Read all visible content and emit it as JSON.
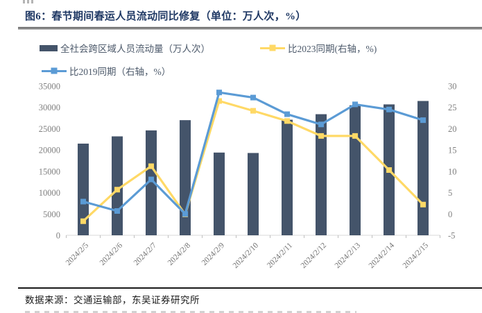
{
  "page": {
    "title": "图6：春节期间春运人员流动同比修复（单位：万人次，%）",
    "source_note": "数据来源：交通运输部，东吴证券研究所"
  },
  "colors": {
    "title_navy": "#1f3864",
    "bar": "#44546a",
    "line_2023_yellow": "#ffd966",
    "line_2019_blue": "#5b9bd5",
    "axis_text": "#7f7f7f",
    "axis_line": "#d9d9d9",
    "divider": "#1a1a1a"
  },
  "legend": [
    {
      "label": "全社会跨区域人员流动量（万人次）",
      "swatch": "bar-swatch",
      "color": "#44546a"
    },
    {
      "label": "比2023同期(右轴，%)",
      "swatch": "line-swatch",
      "color": "#ffd966"
    },
    {
      "label": "比2019同期（右轴，%）",
      "swatch": "line-swatch",
      "color": "#5b9bd5"
    }
  ],
  "chart_data": {
    "type": "bar",
    "subtype": "bar+line combo, lines on secondary axis",
    "title": "图6：春节期间春运人员流动同比修复（单位：万人次，%）",
    "categories": [
      "2024/2/5",
      "2024/2/6",
      "2024/2/7",
      "2024/2/8",
      "2024/2/9",
      "2024/2/10",
      "2024/2/11",
      "2024/2/12",
      "2024/2/13",
      "2024/2/14",
      "2024/2/15"
    ],
    "series": [
      {
        "name": "全社会跨区域人员流动量（万人次）",
        "type": "bar",
        "axis": "left",
        "color": "#44546a",
        "values": [
          21500,
          23200,
          24600,
          27000,
          19400,
          19300,
          27100,
          28400,
          30500,
          30700,
          31500
        ]
      },
      {
        "name": "比2023同期(右轴，%)",
        "type": "line",
        "axis": "right",
        "color": "#ffd966",
        "values": [
          -1.7,
          5.7,
          11.2,
          -0.1,
          26.5,
          24.2,
          21.8,
          18.3,
          18.3,
          10.3,
          2.2
        ]
      },
      {
        "name": "比2019同期（右轴，%）",
        "type": "line",
        "axis": "right",
        "color": "#5b9bd5",
        "values": [
          2.9,
          0.7,
          8.1,
          0.0,
          28.5,
          27.3,
          23.4,
          21.0,
          25.7,
          24.5,
          22.0
        ]
      }
    ],
    "left_axis": {
      "min": 0,
      "max": 35000,
      "step": 5000,
      "ticks": [
        0,
        5000,
        10000,
        15000,
        20000,
        25000,
        30000,
        35000
      ]
    },
    "right_axis": {
      "min": -5,
      "max": 30,
      "step": 5,
      "ticks": [
        -5,
        0,
        5,
        10,
        15,
        20,
        25,
        30
      ]
    },
    "grid": false,
    "legend_position": "top",
    "x_tick_label_rotation": -45
  }
}
